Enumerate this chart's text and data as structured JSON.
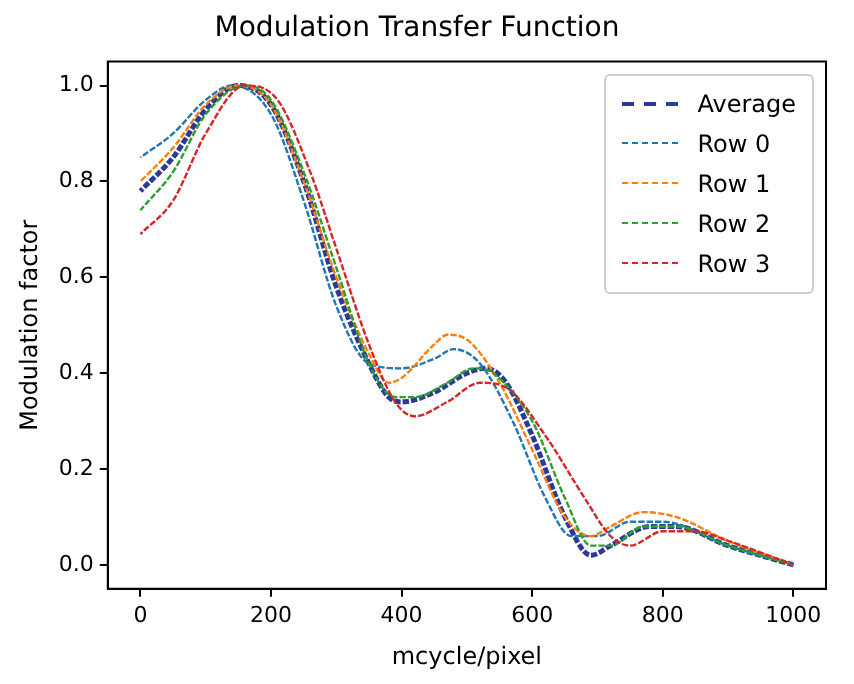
{
  "chart_data": {
    "type": "line",
    "title": "Modulation Transfer Function",
    "xlabel": "mcycle/pixel",
    "ylabel": "Modulation factor",
    "xlim": [
      -50,
      1050
    ],
    "ylim": [
      -0.05,
      1.05
    ],
    "xticks": [
      0,
      200,
      400,
      600,
      800,
      1000
    ],
    "yticks": [
      {
        "value": 0,
        "label": "0.0"
      },
      {
        "value": 0.2,
        "label": "0.2"
      },
      {
        "value": 0.4,
        "label": "0.4"
      },
      {
        "value": 0.6,
        "label": "0.6"
      },
      {
        "value": 0.8,
        "label": "0.8"
      },
      {
        "value": 1,
        "label": "1.0"
      }
    ],
    "grid": false,
    "legend": "top right",
    "marker": "none",
    "line_style": "dashed",
    "series": [
      {
        "name": "Average",
        "color": "#2b3a98",
        "x": [
          0,
          50,
          100,
          150,
          200,
          250,
          300,
          350,
          380,
          400,
          450,
          500,
          530,
          560,
          600,
          650,
          690,
          720,
          780,
          820,
          900,
          1000
        ],
        "values": [
          0.78,
          0.85,
          0.95,
          1.0,
          0.96,
          0.8,
          0.58,
          0.42,
          0.35,
          0.34,
          0.36,
          0.4,
          0.41,
          0.38,
          0.27,
          0.1,
          0.02,
          0.04,
          0.08,
          0.08,
          0.04,
          0.0
        ]
      },
      {
        "name": "Row 0",
        "color": "#1f77b4",
        "x": [
          0,
          50,
          100,
          140,
          200,
          250,
          300,
          350,
          400,
          450,
          480,
          520,
          570,
          620,
          660,
          700,
          750,
          800,
          900,
          1000
        ],
        "values": [
          0.85,
          0.9,
          0.97,
          1.0,
          0.94,
          0.76,
          0.54,
          0.42,
          0.41,
          0.43,
          0.45,
          0.42,
          0.3,
          0.14,
          0.06,
          0.06,
          0.09,
          0.09,
          0.04,
          0.0
        ]
      },
      {
        "name": "Row 1",
        "color": "#ff7f0e",
        "x": [
          0,
          50,
          100,
          150,
          200,
          250,
          300,
          350,
          380,
          400,
          450,
          470,
          500,
          550,
          600,
          650,
          690,
          720,
          770,
          820,
          900,
          1000
        ],
        "values": [
          0.8,
          0.87,
          0.96,
          1.0,
          0.96,
          0.8,
          0.6,
          0.44,
          0.38,
          0.39,
          0.46,
          0.48,
          0.47,
          0.38,
          0.24,
          0.1,
          0.06,
          0.08,
          0.11,
          0.1,
          0.05,
          0.0
        ]
      },
      {
        "name": "Row 2",
        "color": "#2ca02c",
        "x": [
          0,
          50,
          100,
          160,
          200,
          250,
          300,
          350,
          390,
          420,
          470,
          510,
          540,
          600,
          650,
          690,
          720,
          770,
          820,
          900,
          1000
        ],
        "values": [
          0.74,
          0.82,
          0.94,
          1.0,
          0.97,
          0.82,
          0.62,
          0.42,
          0.35,
          0.35,
          0.38,
          0.41,
          0.4,
          0.3,
          0.14,
          0.04,
          0.04,
          0.08,
          0.08,
          0.04,
          0.0
        ]
      },
      {
        "name": "Row 3",
        "color": "#d62728",
        "x": [
          0,
          50,
          100,
          160,
          210,
          260,
          300,
          350,
          390,
          420,
          470,
          520,
          560,
          620,
          680,
          720,
          750,
          800,
          850,
          900,
          1000
        ],
        "values": [
          0.69,
          0.76,
          0.9,
          1.0,
          0.97,
          0.82,
          0.66,
          0.46,
          0.34,
          0.31,
          0.34,
          0.38,
          0.37,
          0.27,
          0.14,
          0.06,
          0.04,
          0.07,
          0.07,
          0.05,
          0.0
        ]
      }
    ]
  }
}
